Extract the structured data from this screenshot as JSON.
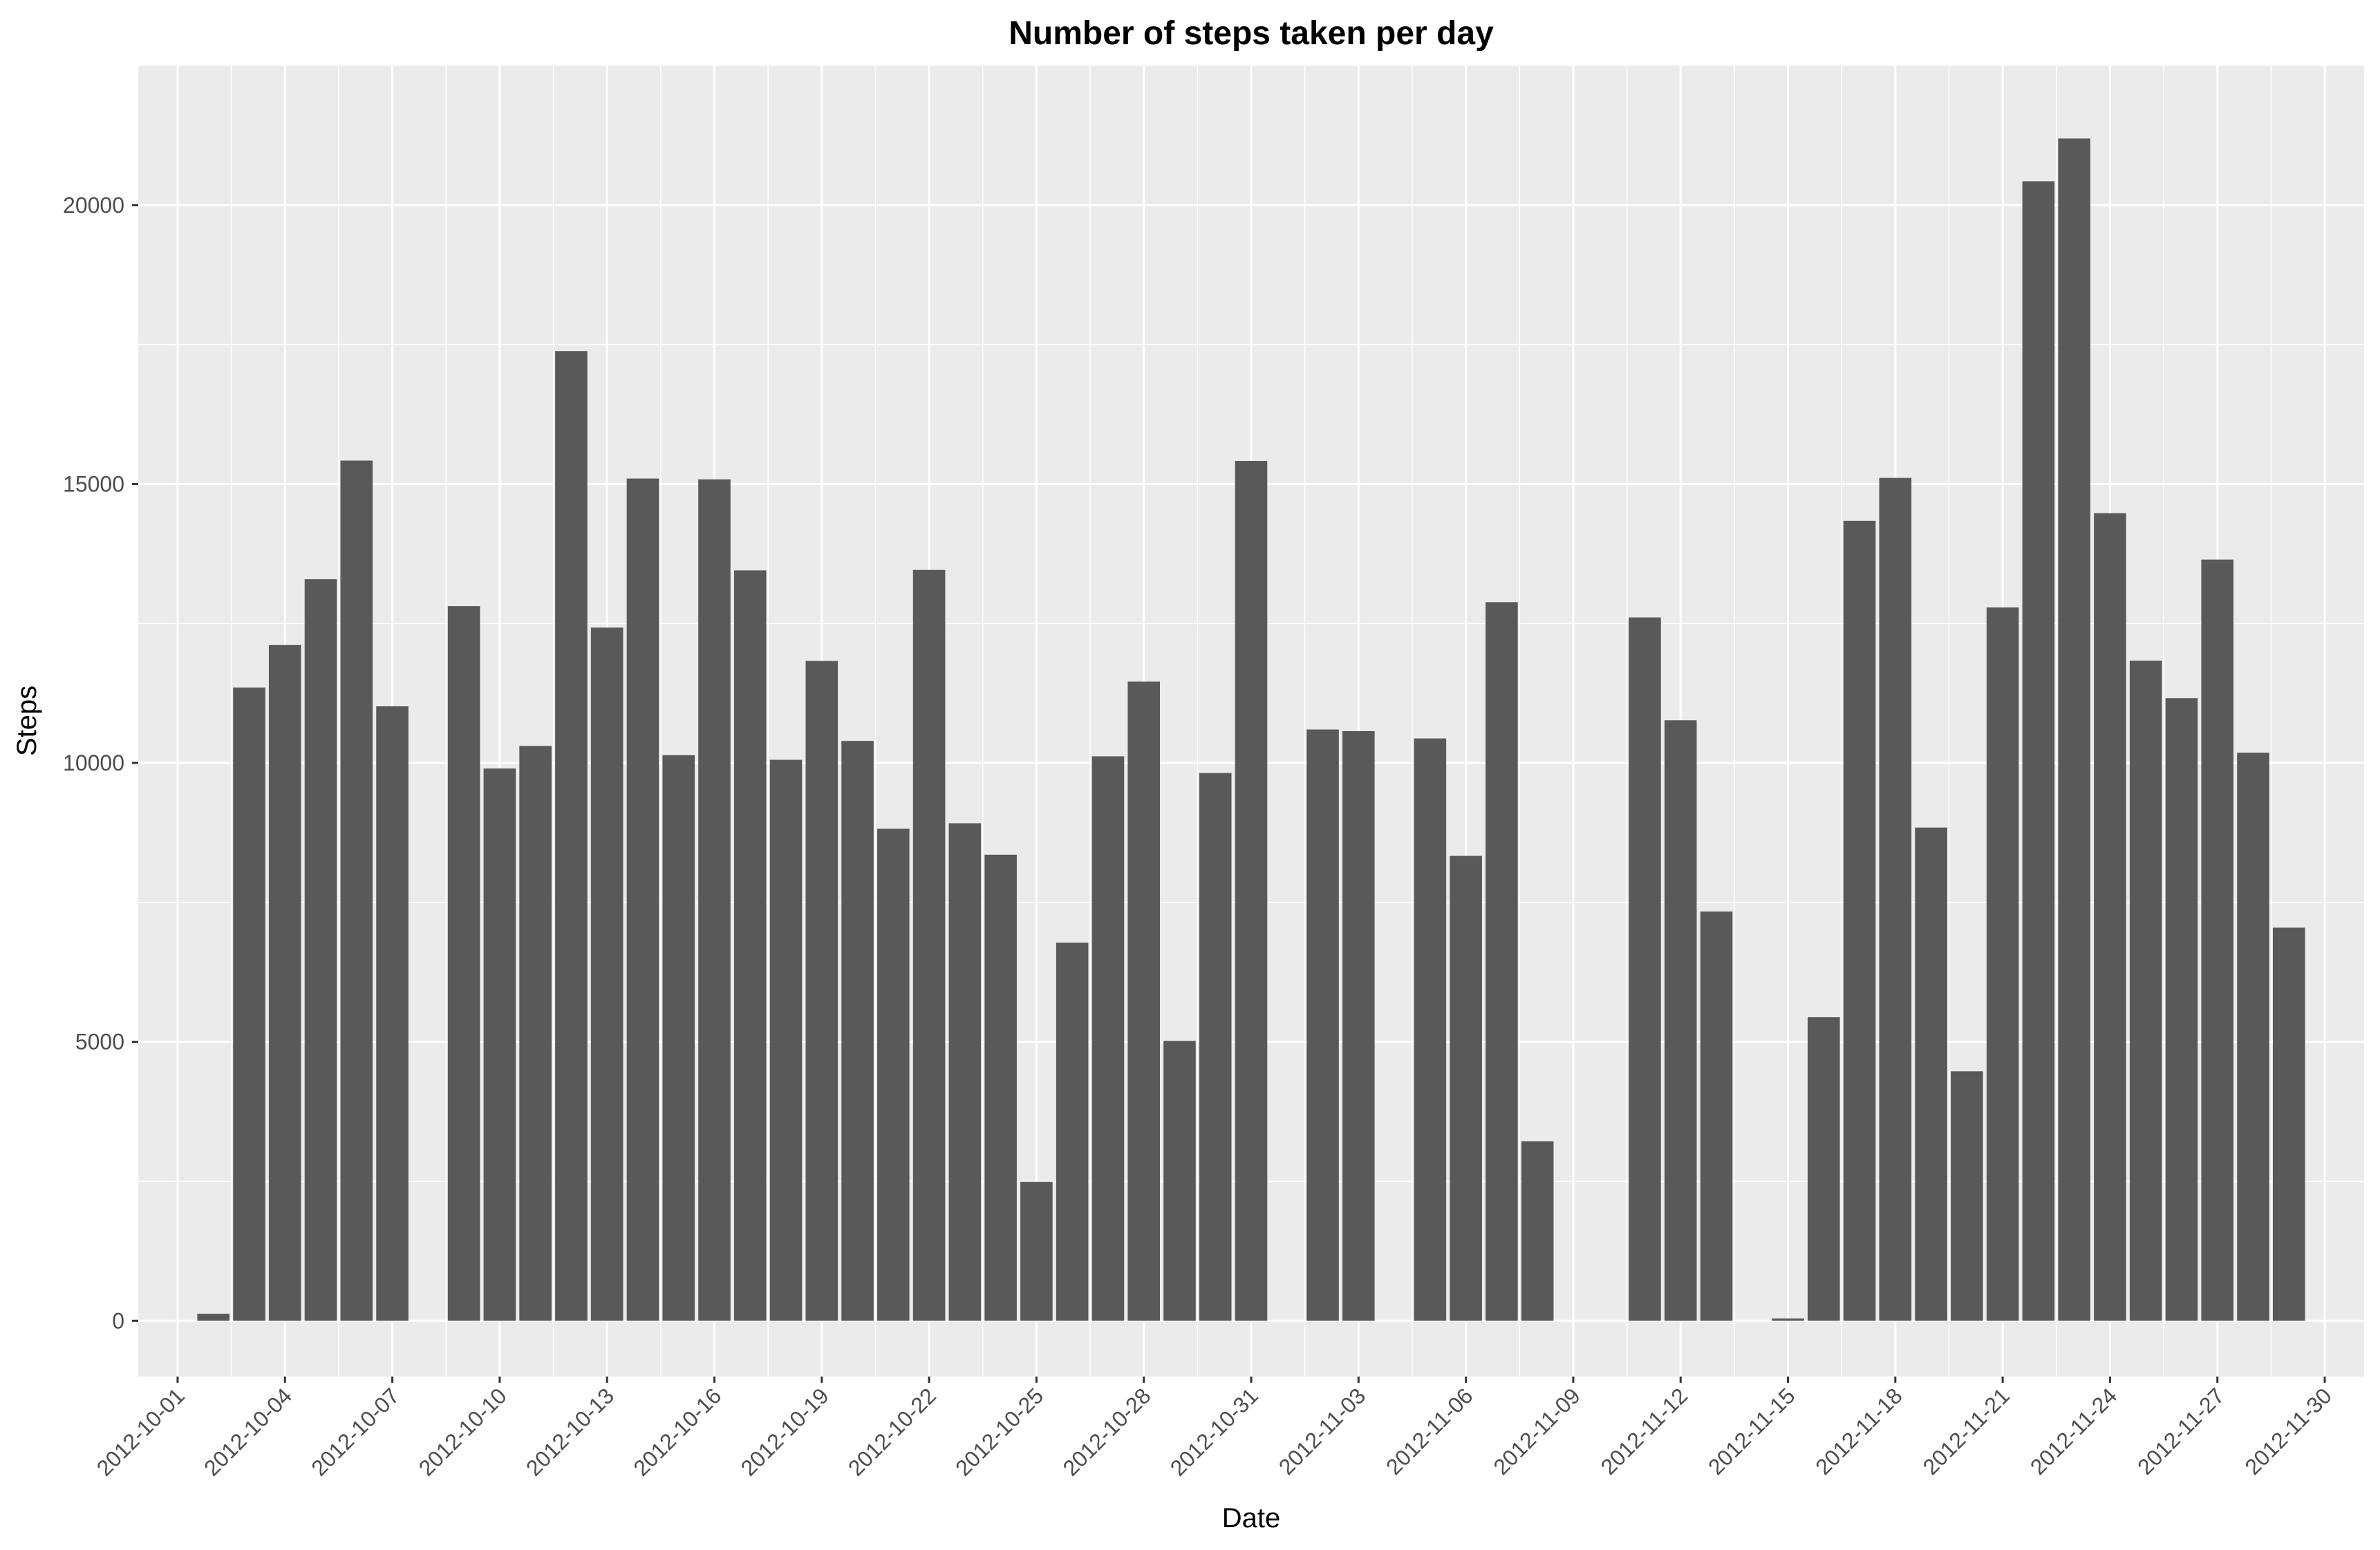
{
  "chart_data": {
    "type": "bar",
    "title": "Number of steps taken per day",
    "xlabel": "Date",
    "ylabel": "Steps",
    "ylim": [
      -1000,
      22500
    ],
    "y_ticks": [
      0,
      5000,
      10000,
      15000,
      20000
    ],
    "x_tick_labels": [
      "2012-10-01",
      "2012-10-04",
      "2012-10-07",
      "2012-10-10",
      "2012-10-13",
      "2012-10-16",
      "2012-10-19",
      "2012-10-22",
      "2012-10-25",
      "2012-10-28",
      "2012-10-31",
      "2012-11-03",
      "2012-11-06",
      "2012-11-09",
      "2012-11-12",
      "2012-11-15",
      "2012-11-18",
      "2012-11-21",
      "2012-11-24",
      "2012-11-27",
      "2012-11-30"
    ],
    "grid": true,
    "colors": {
      "bar": "#595959",
      "panel": "#ebebeb",
      "grid": "#ffffff"
    },
    "categories": [
      "2012-10-01",
      "2012-10-02",
      "2012-10-03",
      "2012-10-04",
      "2012-10-05",
      "2012-10-06",
      "2012-10-07",
      "2012-10-08",
      "2012-10-09",
      "2012-10-10",
      "2012-10-11",
      "2012-10-12",
      "2012-10-13",
      "2012-10-14",
      "2012-10-15",
      "2012-10-16",
      "2012-10-17",
      "2012-10-18",
      "2012-10-19",
      "2012-10-20",
      "2012-10-21",
      "2012-10-22",
      "2012-10-23",
      "2012-10-24",
      "2012-10-25",
      "2012-10-26",
      "2012-10-27",
      "2012-10-28",
      "2012-10-29",
      "2012-10-30",
      "2012-10-31",
      "2012-11-01",
      "2012-11-02",
      "2012-11-03",
      "2012-11-04",
      "2012-11-05",
      "2012-11-06",
      "2012-11-07",
      "2012-11-08",
      "2012-11-09",
      "2012-11-10",
      "2012-11-11",
      "2012-11-12",
      "2012-11-13",
      "2012-11-14",
      "2012-11-15",
      "2012-11-16",
      "2012-11-17",
      "2012-11-18",
      "2012-11-19",
      "2012-11-20",
      "2012-11-21",
      "2012-11-22",
      "2012-11-23",
      "2012-11-24",
      "2012-11-25",
      "2012-11-26",
      "2012-11-27",
      "2012-11-28",
      "2012-11-29",
      "2012-11-30"
    ],
    "values": [
      0,
      126,
      11352,
      12116,
      13294,
      15420,
      11015,
      0,
      12811,
      9900,
      10304,
      17382,
      12426,
      15098,
      10139,
      15084,
      13452,
      10056,
      11829,
      10395,
      8821,
      13460,
      8918,
      8355,
      2492,
      6778,
      10119,
      11458,
      5018,
      9819,
      15414,
      0,
      10600,
      10571,
      0,
      10439,
      8334,
      12883,
      3219,
      0,
      0,
      12608,
      10765,
      7336,
      0,
      41,
      5441,
      14339,
      15110,
      8841,
      4472,
      12787,
      20427,
      21194,
      14478,
      11834,
      11162,
      13646,
      10183,
      7047,
      0
    ]
  }
}
